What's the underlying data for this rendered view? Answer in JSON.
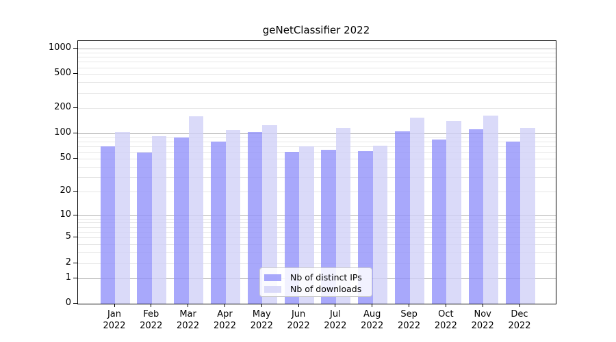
{
  "title": "geNetClassifier 2022",
  "colors": {
    "ips_bar": "#8f8ffa",
    "downloads_bar": "#d0d0f7",
    "grid_major": "#b0b0b0",
    "grid_minor": "#e6e6e6",
    "spine": "#000000",
    "background": "#ffffff"
  },
  "legend": {
    "position": "lower center"
  },
  "chart_data": {
    "type": "bar",
    "title": "geNetClassifier 2022",
    "categories": [
      "Jan\n2022",
      "Feb\n2022",
      "Mar\n2022",
      "Apr\n2022",
      "May\n2022",
      "Jun\n2022",
      "Jul\n2022",
      "Aug\n2022",
      "Sep\n2022",
      "Oct\n2022",
      "Nov\n2022",
      "Dec\n2022"
    ],
    "series": [
      {
        "name": "Nb of distinct IPs",
        "color": "#8f8ffa",
        "values": [
          70,
          59,
          89,
          80,
          103,
          60,
          64,
          61,
          106,
          84,
          111,
          79
        ]
      },
      {
        "name": "Nb of downloads",
        "color": "#d0d0f7",
        "values": [
          104,
          93,
          158,
          109,
          124,
          70,
          116,
          71,
          154,
          139,
          161,
          116
        ]
      }
    ],
    "xlabel": "",
    "ylabel": "",
    "y_scale": "log1p",
    "y_ticks": [
      0,
      1,
      2,
      5,
      10,
      20,
      50,
      100,
      200,
      500,
      1000
    ],
    "ylim": [
      0,
      1100
    ],
    "grid": true,
    "legend_position": "lower center"
  }
}
